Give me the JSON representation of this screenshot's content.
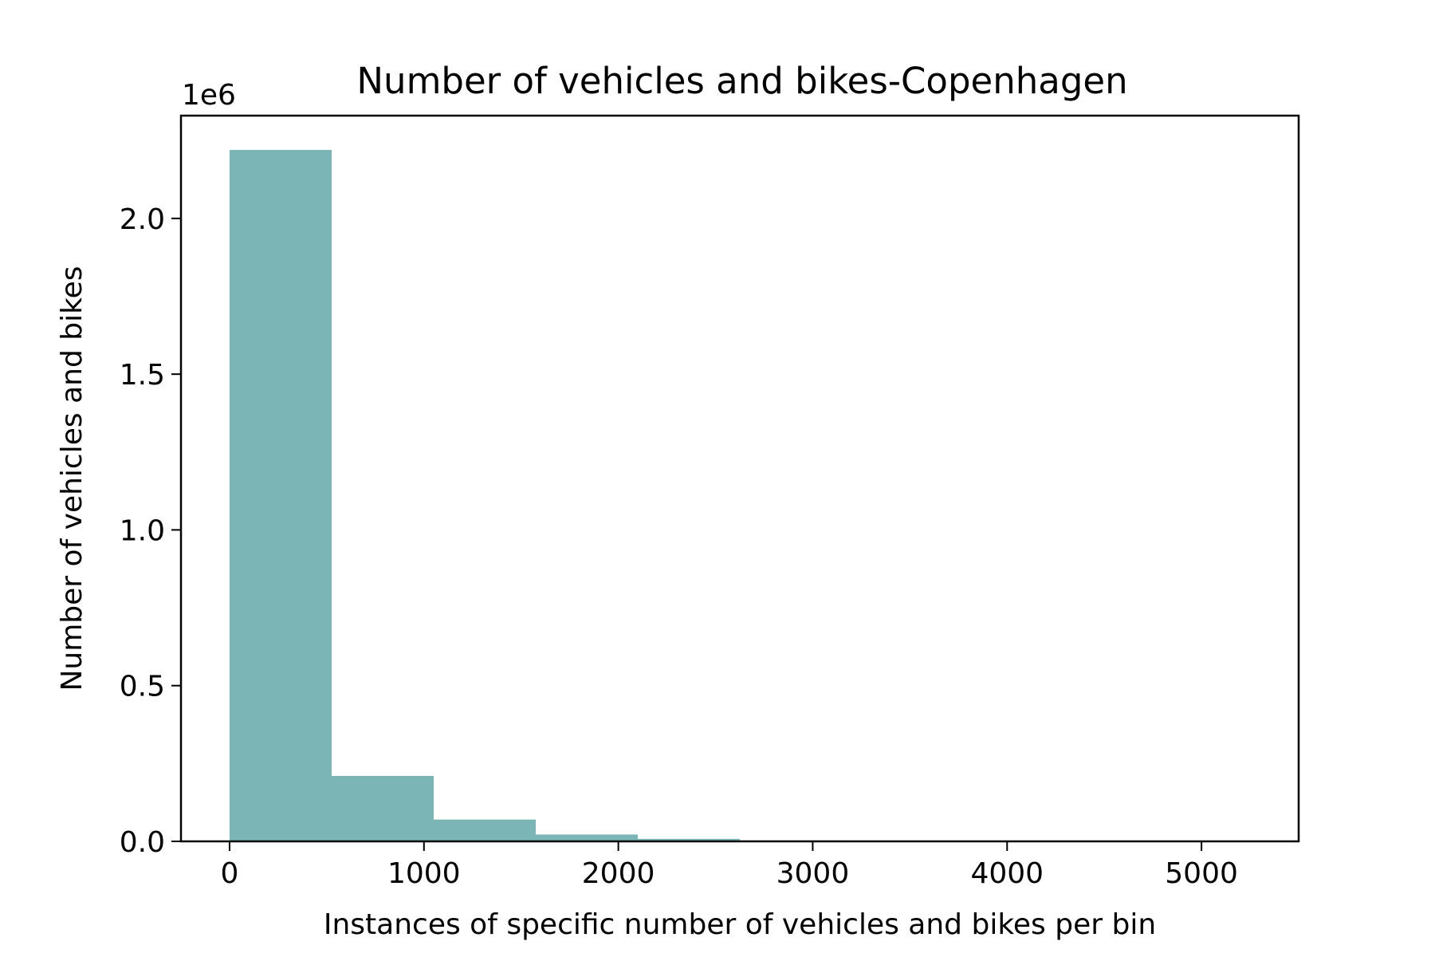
{
  "chart_data": {
    "type": "bar",
    "title": "Number of vehicles and bikes-Copenhagen",
    "xlabel": "Instances of specific number of vehicles and bikes per bin",
    "ylabel": "Number of vehicles and bikes",
    "y_offset_label": "1e6",
    "bar_color": "#7bb5b5",
    "xlim": [
      -250,
      5500
    ],
    "ylim": [
      0,
      2330000
    ],
    "xticks": [
      0,
      1000,
      2000,
      3000,
      4000,
      5000
    ],
    "xtick_labels": [
      "0",
      "1000",
      "2000",
      "3000",
      "4000",
      "5000"
    ],
    "yticks": [
      0,
      500000,
      1000000,
      1500000,
      2000000
    ],
    "ytick_labels": [
      "0.0",
      "0.5",
      "1.0",
      "1.5",
      "2.0"
    ],
    "bin_edges": [
      0,
      525,
      1050,
      1575,
      2100,
      2625,
      3150,
      3675,
      4200,
      4725,
      5250
    ],
    "values": [
      2220000,
      210000,
      70000,
      22000,
      8000,
      3000,
      1000,
      500,
      300,
      200
    ],
    "grid": false
  }
}
